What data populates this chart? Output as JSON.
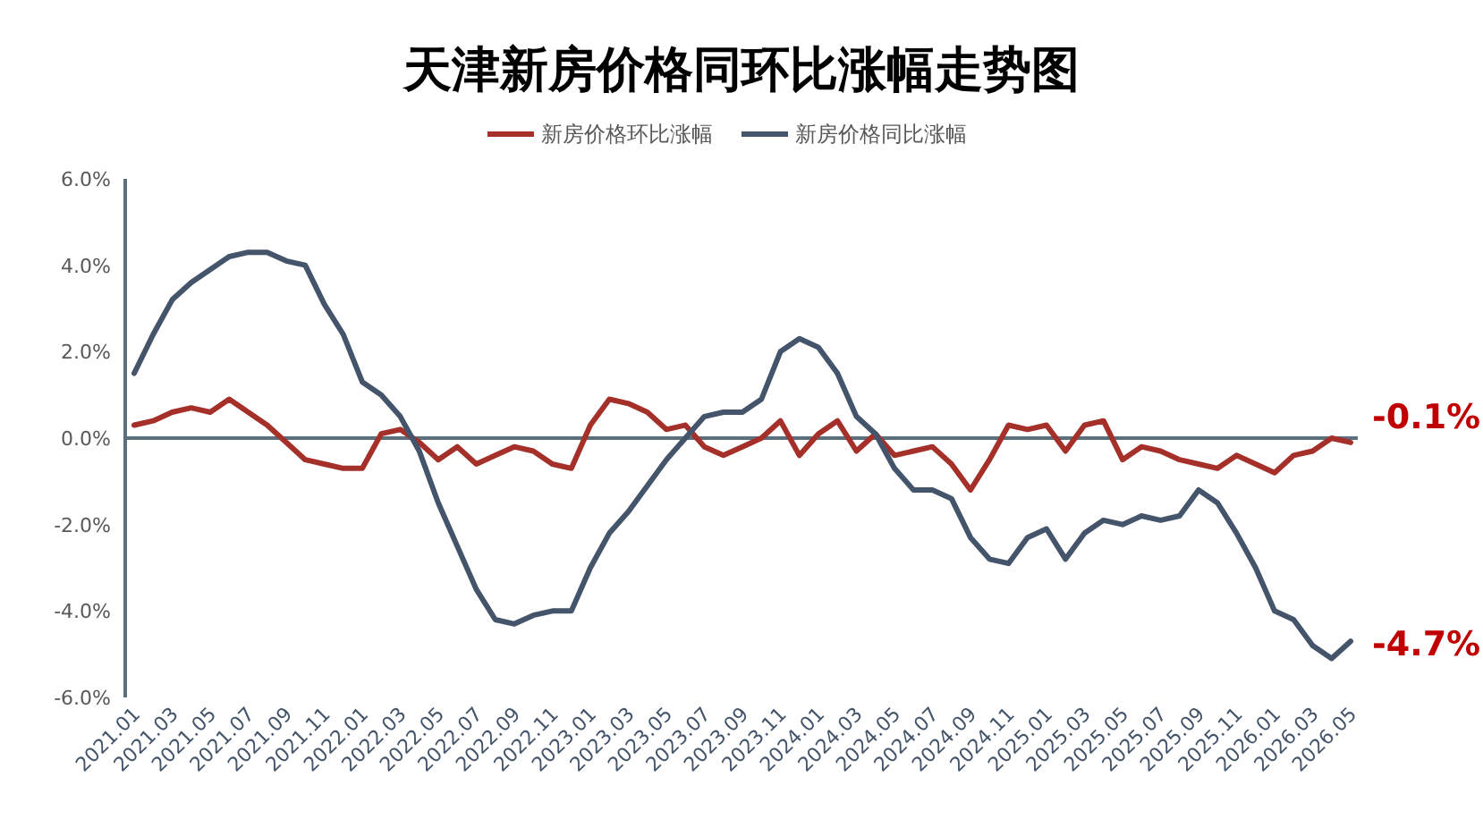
{
  "chart_data": {
    "type": "line",
    "title": "天津新房价格同环比涨幅走势图",
    "categories": [
      "2021.01",
      null,
      "2021.03",
      null,
      "2021.05",
      null,
      "2021.07",
      null,
      "2021.09",
      null,
      "2021.11",
      null,
      "2022.01",
      null,
      "2022.03",
      null,
      "2022.05",
      null,
      "2022.07",
      null,
      "2022.09",
      null,
      "2022.11",
      null,
      "2023.01",
      null,
      "2023.03",
      null,
      "2023.05",
      null,
      "2023.07",
      null,
      "2023.09",
      null,
      "2023.11",
      null,
      "2024.01",
      null,
      "2024.03",
      null,
      "2024.05",
      null,
      "2024.07",
      null,
      "2024.09",
      null,
      "2024.11",
      null,
      "2025.01",
      null,
      "2025.03",
      null,
      "2025.05",
      null,
      "2025.07",
      null,
      "2025.09",
      null,
      "2025.11",
      null,
      "2026.01",
      null,
      "2026.03",
      null,
      "2026.05"
    ],
    "series": [
      {
        "name": "新房价格环比涨幅",
        "color": "#a5302a",
        "values": [
          0.3,
          0.4,
          0.6,
          0.7,
          0.6,
          0.9,
          0.6,
          0.3,
          -0.1,
          -0.5,
          -0.6,
          -0.7,
          -0.7,
          0.1,
          0.2,
          -0.1,
          -0.5,
          -0.2,
          -0.6,
          -0.4,
          -0.2,
          -0.3,
          -0.6,
          -0.7,
          0.3,
          0.9,
          0.8,
          0.6,
          0.2,
          0.3,
          -0.2,
          -0.4,
          -0.2,
          0.0,
          0.4,
          -0.4,
          0.1,
          0.4,
          -0.3,
          0.1,
          -0.4,
          -0.3,
          -0.2,
          -0.6,
          -1.2,
          -0.5,
          0.3,
          0.2,
          0.3,
          -0.3,
          0.3,
          0.4,
          -0.5,
          -0.2,
          -0.3,
          -0.5,
          -0.6,
          -0.7,
          -0.4,
          -0.6,
          -0.8,
          -0.4,
          -0.3,
          0.0,
          -0.1
        ]
      },
      {
        "name": "新房价格同比涨幅",
        "color": "#44546a",
        "values": [
          1.5,
          2.4,
          3.2,
          3.6,
          3.9,
          4.2,
          4.3,
          4.3,
          4.1,
          4.0,
          3.1,
          2.4,
          1.3,
          1.0,
          0.5,
          -0.3,
          -1.5,
          -2.5,
          -3.5,
          -4.2,
          -4.3,
          -4.1,
          -4.0,
          -4.0,
          -3.0,
          -2.2,
          -1.7,
          -1.1,
          -0.5,
          0.0,
          0.5,
          0.6,
          0.6,
          0.9,
          2.0,
          2.3,
          2.1,
          1.5,
          0.5,
          0.1,
          -0.7,
          -1.2,
          -1.2,
          -1.4,
          -2.3,
          -2.8,
          -2.9,
          -2.3,
          -2.1,
          -2.8,
          -2.2,
          -1.9,
          -2.0,
          -1.8,
          -1.9,
          -1.8,
          -1.2,
          -1.5,
          -2.2,
          -3.0,
          -4.0,
          -4.2,
          -4.8,
          -5.1,
          -4.7
        ]
      }
    ],
    "ylim": [
      -6,
      6
    ],
    "yticks": [
      {
        "value": -6,
        "label": "-6.0%"
      },
      {
        "value": -4,
        "label": "-4.0%"
      },
      {
        "value": -2,
        "label": "-2.0%"
      },
      {
        "value": 0,
        "label": "0.0%"
      },
      {
        "value": 2,
        "label": "2.0%"
      },
      {
        "value": 4,
        "label": "4.0%"
      },
      {
        "value": 6,
        "label": "6.0%"
      }
    ],
    "legend": "top",
    "annotations": [
      {
        "text": "-0.1%",
        "x": "2026.05",
        "y": -0.1
      },
      {
        "text": "-4.7%",
        "x": "2026.05",
        "y": -4.7
      }
    ]
  }
}
